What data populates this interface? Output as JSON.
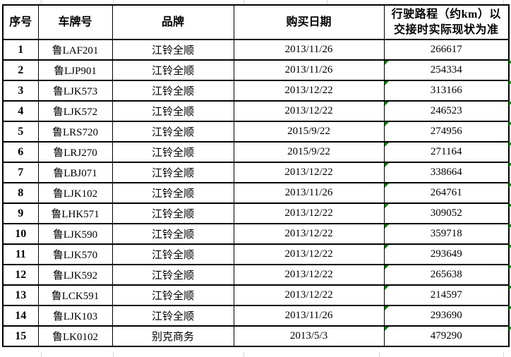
{
  "colors": {
    "border": "#000000",
    "gridline": "#d6d6d6",
    "error_flag_green": "#008000",
    "text": "#000000",
    "background": "#ffffff"
  },
  "table": {
    "headers": [
      "序号",
      "车牌号",
      "品牌",
      "购买日期",
      "行驶路程（约km）以\n交接时实际现状为准"
    ],
    "rows": [
      {
        "index": "1",
        "plate": "鲁LAF201",
        "brand": "江铃全顺",
        "date": "2013/11/26",
        "mileage": "266617",
        "flag": false
      },
      {
        "index": "2",
        "plate": "鲁LJP901",
        "brand": "江铃全顺",
        "date": "2013/11/26",
        "mileage": "254334",
        "flag": true
      },
      {
        "index": "3",
        "plate": "鲁LJK573",
        "brand": "江铃全顺",
        "date": "2013/12/22",
        "mileage": "313166",
        "flag": true
      },
      {
        "index": "4",
        "plate": "鲁LJK572",
        "brand": "江铃全顺",
        "date": "2013/12/22",
        "mileage": "246523",
        "flag": true
      },
      {
        "index": "5",
        "plate": "鲁LRS720",
        "brand": "江铃全顺",
        "date": "2015/9/22",
        "mileage": "274956",
        "flag": true
      },
      {
        "index": "6",
        "plate": "鲁LRJ270",
        "brand": "江铃全顺",
        "date": "2015/9/22",
        "mileage": "271164",
        "flag": true
      },
      {
        "index": "7",
        "plate": "鲁LBJ071",
        "brand": "江铃全顺",
        "date": "2013/12/22",
        "mileage": "338664",
        "flag": true
      },
      {
        "index": "8",
        "plate": "鲁LJK102",
        "brand": "江铃全顺",
        "date": "2013/11/26",
        "mileage": "264761",
        "flag": true
      },
      {
        "index": "9",
        "plate": "鲁LHK571",
        "brand": "江铃全顺",
        "date": "2013/12/22",
        "mileage": "309052",
        "flag": true
      },
      {
        "index": "10",
        "plate": "鲁LJK590",
        "brand": "江铃全顺",
        "date": "2013/12/22",
        "mileage": "359718",
        "flag": true
      },
      {
        "index": "11",
        "plate": "鲁LJK570",
        "brand": "江铃全顺",
        "date": "2013/12/22",
        "mileage": "293649",
        "flag": true
      },
      {
        "index": "12",
        "plate": "鲁LJK592",
        "brand": "江铃全顺",
        "date": "2013/12/22",
        "mileage": "265638",
        "flag": true
      },
      {
        "index": "13",
        "plate": "鲁LCK591",
        "brand": "江铃全顺",
        "date": "2013/12/22",
        "mileage": "214597",
        "flag": true
      },
      {
        "index": "14",
        "plate": "鲁LJK103",
        "brand": "江铃全顺",
        "date": "2013/11/26",
        "mileage": "293690",
        "flag": true
      },
      {
        "index": "15",
        "plate": "鲁LK0102",
        "brand": "别克商务",
        "date": "2013/5/3",
        "mileage": "479290",
        "flag": true
      }
    ]
  }
}
